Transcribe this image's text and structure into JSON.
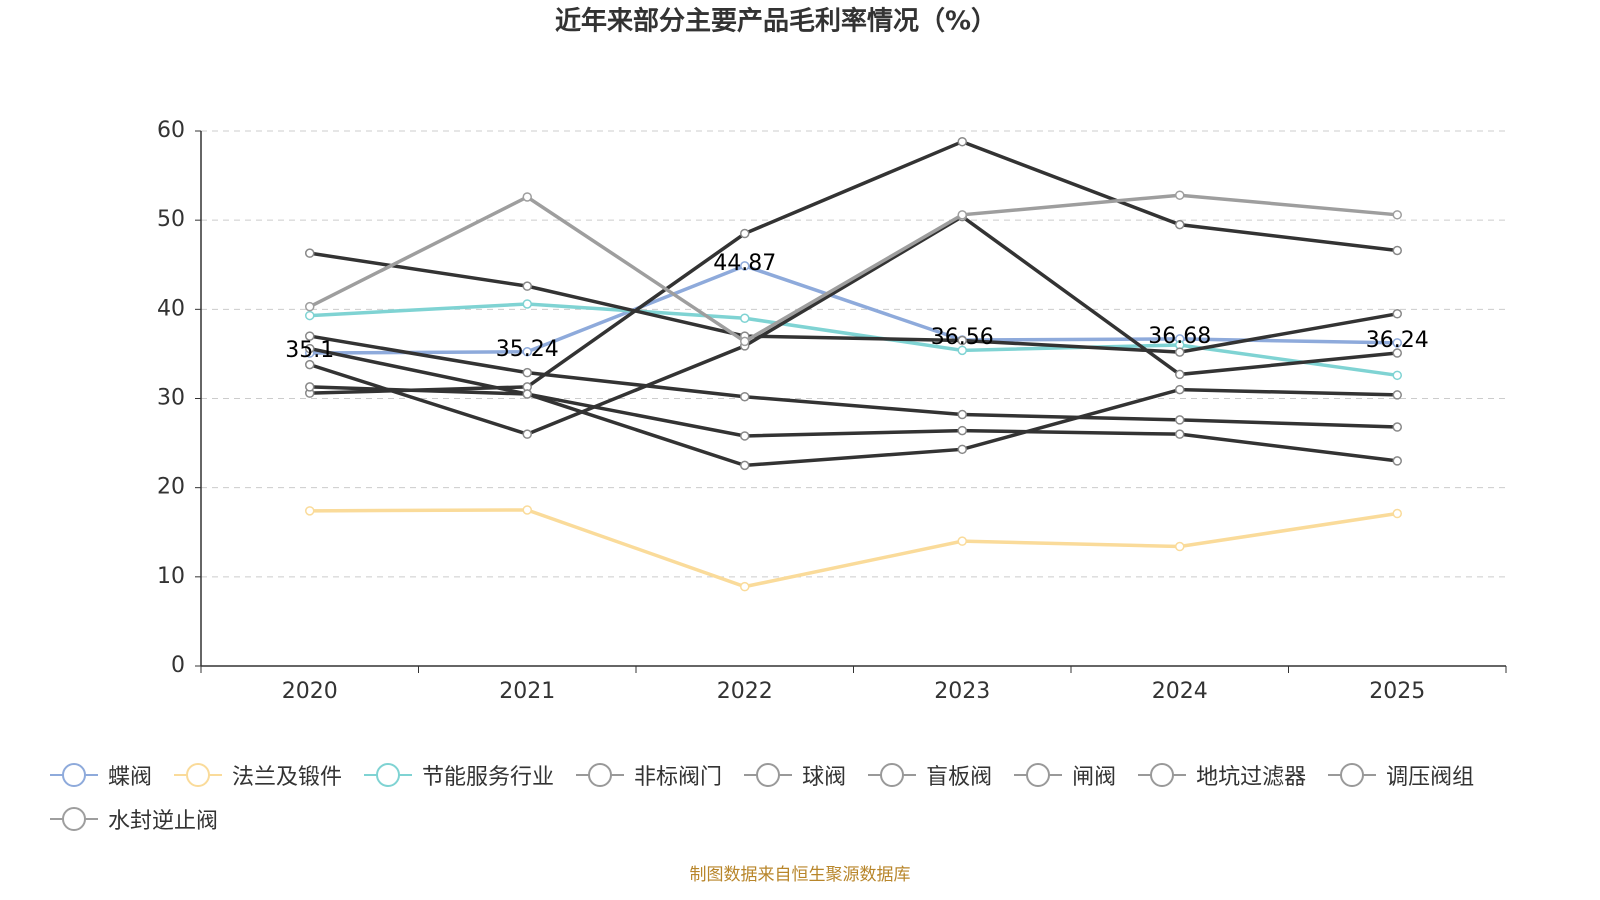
{
  "chart_data": {
    "type": "line",
    "title": "近年来部分主要产品毛利率情况（%）",
    "categories": [
      "2020",
      "2021",
      "2022",
      "2023",
      "2024",
      "2025"
    ],
    "ylim": [
      0,
      60
    ],
    "yticks": [
      0,
      10,
      20,
      30,
      40,
      50,
      60
    ],
    "grid": true,
    "series": [
      {
        "name": "蝶阀",
        "color": "#8eaadb",
        "show_labels": true,
        "values": [
          35.1,
          35.24,
          44.87,
          36.56,
          36.68,
          36.24
        ]
      },
      {
        "name": "法兰及锻件",
        "color": "#fadb9a",
        "values": [
          17.4,
          17.5,
          8.9,
          14.0,
          13.4,
          17.1
        ]
      },
      {
        "name": "节能服务行业",
        "color": "#7fd3d3",
        "values": [
          39.3,
          40.6,
          39.0,
          35.4,
          36.0,
          32.6
        ]
      },
      {
        "name": "非标阀门",
        "color": "#333333",
        "values": [
          46.3,
          42.6,
          37.0,
          36.5,
          35.2,
          39.5
        ]
      },
      {
        "name": "球阀",
        "color": "#333333",
        "values": [
          33.8,
          26.0,
          35.9,
          50.4,
          32.7,
          35.1
        ]
      },
      {
        "name": "盲板阀",
        "color": "#333333",
        "values": [
          30.6,
          31.3,
          48.5,
          58.8,
          49.5,
          46.6
        ]
      },
      {
        "name": "闸阀",
        "color": "#333333",
        "values": [
          37.0,
          32.9,
          30.2,
          28.2,
          27.6,
          26.8
        ]
      },
      {
        "name": "地坑过滤器",
        "color": "#333333",
        "values": [
          35.6,
          30.5,
          25.8,
          26.4,
          26.0,
          23.0
        ]
      },
      {
        "name": "调压阀组",
        "color": "#333333",
        "values": [
          31.3,
          30.5,
          22.5,
          24.3,
          31.0,
          30.4
        ]
      },
      {
        "name": "水封逆止阀",
        "color": "#9e9e9e",
        "values": [
          40.3,
          52.6,
          36.4,
          50.6,
          52.8,
          50.6
        ]
      }
    ],
    "source": "制图数据来自恒生聚源数据库"
  }
}
